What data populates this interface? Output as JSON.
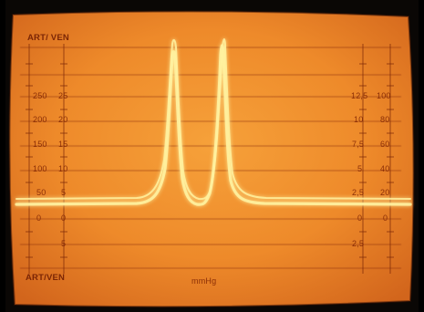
{
  "screen": {
    "background_color": "#f08a2a",
    "trace_color": "#ffe680",
    "label_color": "#7a1f00",
    "top_left_label": "ART/ VEN",
    "bottom_left_label": "ART/VEN",
    "unit_label": "mmHg",
    "left_scale_outer": [
      "250",
      "200",
      "150",
      "100",
      "50",
      "0"
    ],
    "left_scale_inner": [
      "25",
      "20",
      "15",
      "10",
      "5",
      "0",
      "5"
    ],
    "right_scale_inner": [
      "12,5",
      "10",
      "7,5",
      "5",
      "2,5",
      "0",
      "2,5"
    ],
    "right_scale_outer": [
      "100",
      "80",
      "60",
      "40",
      "20",
      "0"
    ]
  }
}
